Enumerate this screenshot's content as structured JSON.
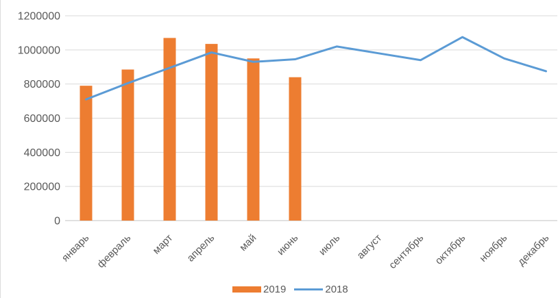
{
  "window": {
    "background_color": "#ffffff"
  },
  "chart_data": {
    "type": "combo",
    "title": "",
    "xlabel": "",
    "ylabel": "",
    "categories": [
      "январь",
      "февраль",
      "март",
      "апрель",
      "май",
      "июнь",
      "июль",
      "август",
      "сентябрь",
      "октябрь",
      "ноябрь",
      "декабрь"
    ],
    "series": [
      {
        "name": "2019",
        "type": "bar",
        "color": "#ED7D31",
        "values": [
          790000,
          885000,
          1070000,
          1035000,
          950000,
          840000,
          null,
          null,
          null,
          null,
          null,
          null
        ]
      },
      {
        "name": "2018",
        "type": "line",
        "color": "#5B9BD5",
        "values": [
          710000,
          805000,
          895000,
          985000,
          930000,
          945000,
          1020000,
          980000,
          940000,
          1075000,
          950000,
          875000
        ]
      }
    ],
    "ylim": [
      0,
      1200000
    ],
    "ytick_step": 200000,
    "ytick_labels": [
      "0",
      "200000",
      "400000",
      "600000",
      "800000",
      "1000000",
      "1200000"
    ],
    "grid": true,
    "legend_position": "bottom",
    "styles": {
      "axis_text_color": "#595959",
      "gridline_color": "#D9D9D9",
      "axis_line_color": "#C0C0C0",
      "plot_background": "#FFFFFF"
    }
  }
}
